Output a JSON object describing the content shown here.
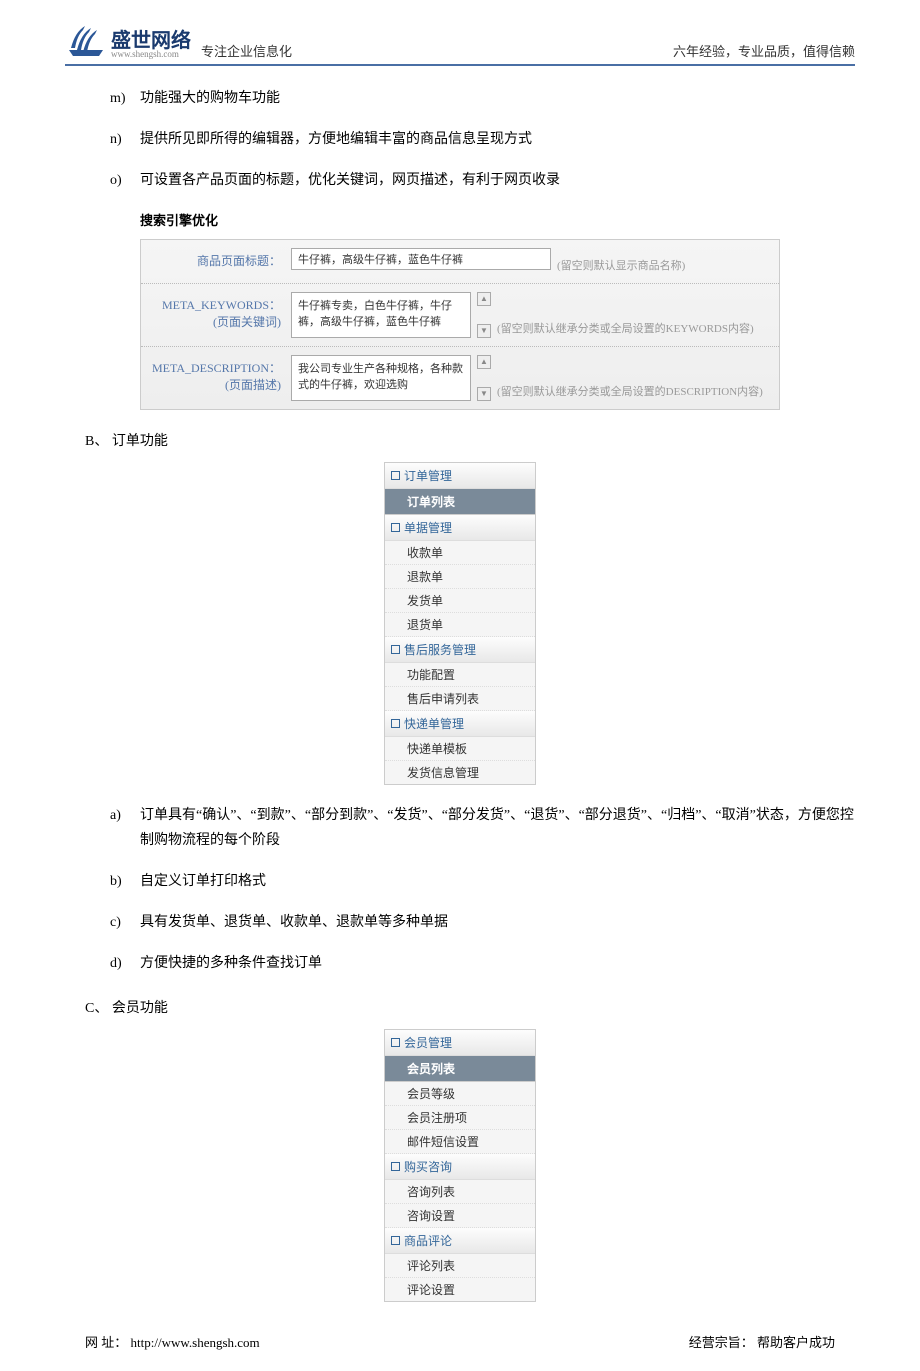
{
  "header": {
    "company_name": "盛世网络",
    "company_url": "www.shengsh.com",
    "slogan": "专注企业信息化",
    "tagline": "六年经验，专业品质，值得信赖"
  },
  "intro_list": [
    {
      "marker": "m)",
      "text": "功能强大的购物车功能"
    },
    {
      "marker": "n)",
      "text": "提供所见即所得的编辑器，方便地编辑丰富的商品信息呈现方式"
    },
    {
      "marker": "o)",
      "text": "可设置各产品页面的标题，优化关键词，网页描述，有利于网页收录"
    }
  ],
  "seo": {
    "title": "搜索引擎优化",
    "rows": [
      {
        "label": "商品页面标题：",
        "type": "input",
        "value": "牛仔裤，高级牛仔裤，蓝色牛仔裤",
        "hint": "(留空则默认显示商品名称)"
      },
      {
        "label": "META_KEYWORDS：\n(页面关键词)",
        "type": "textarea",
        "value": "牛仔裤专卖，白色牛仔裤，牛仔裤，高级牛仔裤，蓝色牛仔裤",
        "hint": "(留空则默认继承分类或全局设置的KEYWORDS内容)"
      },
      {
        "label": "META_DESCRIPTION：\n(页面描述)",
        "type": "textarea",
        "value": "我公司专业生产各种规格，各种款式的牛仔裤，欢迎选购",
        "hint": "(留空则默认继承分类或全局设置的DESCRIPTION内容)"
      }
    ]
  },
  "section_b": {
    "heading": "B、 订单功能",
    "menu": [
      {
        "type": "header",
        "label": "订单管理"
      },
      {
        "type": "active",
        "label": "订单列表"
      },
      {
        "type": "header",
        "label": "单据管理"
      },
      {
        "type": "item",
        "label": "收款单"
      },
      {
        "type": "item",
        "label": "退款单"
      },
      {
        "type": "item",
        "label": "发货单"
      },
      {
        "type": "item",
        "label": "退货单"
      },
      {
        "type": "header",
        "label": "售后服务管理"
      },
      {
        "type": "item",
        "label": "功能配置"
      },
      {
        "type": "item",
        "label": "售后申请列表"
      },
      {
        "type": "header",
        "label": "快递单管理"
      },
      {
        "type": "item",
        "label": "快递单模板"
      },
      {
        "type": "item",
        "label": "发货信息管理"
      }
    ],
    "list": [
      {
        "marker": "a)",
        "text": "订单具有“确认”、“到款”、“部分到款”、“发货”、“部分发货”、“退货”、“部分退货”、“归档”、“取消”状态，方便您控制购物流程的每个阶段"
      },
      {
        "marker": "b)",
        "text": "自定义订单打印格式"
      },
      {
        "marker": "c)",
        "text": "具有发货单、退货单、收款单、退款单等多种单据"
      },
      {
        "marker": "d)",
        "text": "方便快捷的多种条件查找订单"
      }
    ]
  },
  "section_c": {
    "heading": "C、 会员功能",
    "menu": [
      {
        "type": "header",
        "label": "会员管理"
      },
      {
        "type": "active",
        "label": "会员列表"
      },
      {
        "type": "item",
        "label": "会员等级"
      },
      {
        "type": "item",
        "label": "会员注册项"
      },
      {
        "type": "item",
        "label": "邮件短信设置"
      },
      {
        "type": "header",
        "label": "购买咨询"
      },
      {
        "type": "item",
        "label": "咨询列表"
      },
      {
        "type": "item",
        "label": "咨询设置"
      },
      {
        "type": "header",
        "label": "商品评论"
      },
      {
        "type": "item",
        "label": "评论列表"
      },
      {
        "type": "item",
        "label": "评论设置"
      }
    ]
  },
  "footer": {
    "left_label": "网 址：",
    "url": "http://www.shengsh.com",
    "right_label": "经营宗旨：",
    "right_text": "帮助客户成功"
  },
  "colors": {
    "header_border": "#4a6fa5",
    "link_blue": "#336699",
    "label_blue": "#5577aa",
    "hint_gray": "#999999",
    "active_bg": "#7a8a99"
  }
}
